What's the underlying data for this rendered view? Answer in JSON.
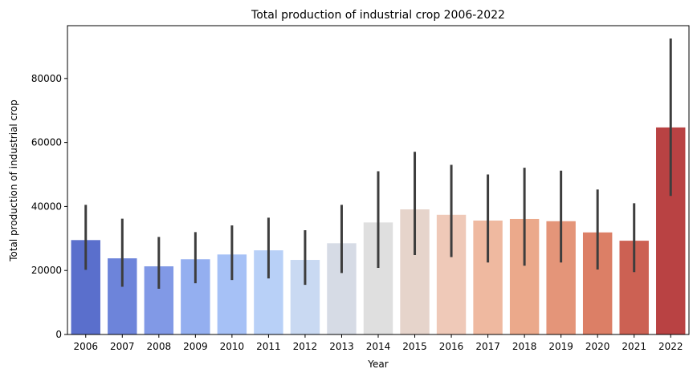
{
  "chart_data": {
    "type": "bar",
    "title": "Total production of industrial crop 2006-2022",
    "xlabel": "Year",
    "ylabel": "Total production of industrial crop",
    "categories": [
      "2006",
      "2007",
      "2008",
      "2009",
      "2010",
      "2011",
      "2012",
      "2013",
      "2014",
      "2015",
      "2016",
      "2017",
      "2018",
      "2019",
      "2020",
      "2021",
      "2022"
    ],
    "values": [
      29500,
      23800,
      21300,
      23500,
      25000,
      26300,
      23300,
      28500,
      35000,
      39100,
      37400,
      35600,
      36100,
      35400,
      31900,
      29300,
      64700
    ],
    "error_low": [
      20200,
      14900,
      14300,
      16000,
      17000,
      17500,
      15500,
      19200,
      20800,
      24800,
      24200,
      22500,
      21500,
      22500,
      20300,
      19500,
      43300
    ],
    "error_high": [
      40500,
      36200,
      30500,
      32000,
      34100,
      36500,
      32600,
      40500,
      51000,
      57100,
      53000,
      50000,
      52100,
      51200,
      45300,
      41000,
      92500
    ],
    "colors": [
      "#5a6fcc",
      "#6d84da",
      "#8199e6",
      "#94aff0",
      "#a6c1f6",
      "#b8d0f7",
      "#c9d9f2",
      "#d6dbe5",
      "#dfdfdf",
      "#e6d4cb",
      "#efc9b8",
      "#efb9a0",
      "#eba98b",
      "#e49579",
      "#dc7f66",
      "#cc6153",
      "#b94243"
    ],
    "error_color": "#3d3d3d",
    "ylim": [
      0,
      96500
    ],
    "yticks": [
      0,
      20000,
      40000,
      60000,
      80000
    ],
    "grid": false,
    "legend": "none"
  }
}
